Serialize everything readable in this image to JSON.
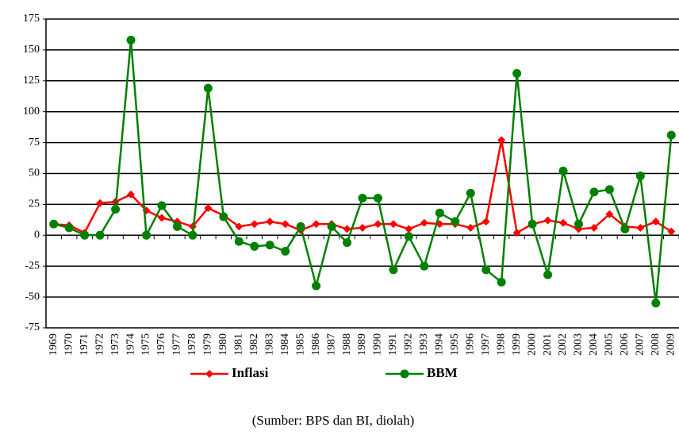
{
  "chart_data": {
    "type": "line",
    "categories": [
      "1969",
      "1970",
      "1971",
      "1972",
      "1973",
      "1974",
      "1975",
      "1976",
      "1977",
      "1978",
      "1979",
      "1980",
      "1981",
      "1982",
      "1983",
      "1984",
      "1985",
      "1986",
      "1987",
      "1988",
      "1989",
      "1990",
      "1991",
      "1992",
      "1993",
      "1994",
      "1995",
      "1996",
      "1997",
      "1998",
      "1999",
      "2000",
      "2001",
      "2002",
      "2003",
      "2004",
      "2005",
      "2006",
      "2007",
      "2008",
      "2009"
    ],
    "series": [
      {
        "name": "Inflasi",
        "color": "#ff0000",
        "marker": "diamond",
        "values": [
          9,
          8,
          2,
          26,
          27,
          33,
          20,
          14,
          11,
          7,
          22,
          16,
          7,
          9,
          11,
          9,
          4,
          9,
          9,
          5,
          6,
          9,
          9,
          5,
          10,
          9,
          9,
          6,
          11,
          77,
          2,
          9,
          12,
          10,
          5,
          6,
          17,
          7,
          6,
          11,
          3
        ]
      },
      {
        "name": "BBM",
        "color": "#008000",
        "marker": "circle",
        "values": [
          9,
          6,
          0,
          0,
          21,
          158,
          0,
          24,
          7,
          0,
          119,
          15,
          -5,
          -9,
          -8,
          -13,
          7,
          -41,
          7,
          -6,
          30,
          30,
          -28,
          -1,
          -25,
          18,
          11,
          34,
          -28,
          -38,
          131,
          9,
          -32,
          52,
          9,
          35,
          37,
          5,
          48,
          -55,
          81
        ]
      }
    ],
    "ylim": [
      -75,
      175
    ],
    "yticks": [
      -75,
      -50,
      -25,
      0,
      25,
      50,
      75,
      100,
      125,
      150,
      175
    ],
    "grid": true,
    "legend": "bottom",
    "source": "(Sumber: BPS dan BI, diolah)"
  }
}
